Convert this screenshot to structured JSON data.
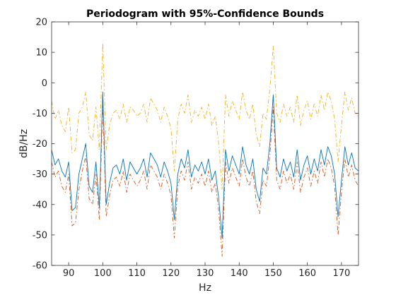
{
  "chart_data": {
    "type": "line",
    "title": "Periodogram with 95%-Confidence Bounds",
    "xlabel": "Hz",
    "ylabel": "dB/Hz",
    "xlim": [
      85,
      175
    ],
    "ylim": [
      -60,
      20
    ],
    "xticks": [
      90,
      100,
      110,
      120,
      130,
      140,
      150,
      160,
      170
    ],
    "yticks": [
      -60,
      -50,
      -40,
      -30,
      -20,
      -10,
      0,
      10,
      20
    ],
    "grid": false,
    "x": [
      85,
      86,
      87,
      88,
      89,
      90,
      91,
      92,
      93,
      94,
      95,
      96,
      97,
      98,
      99,
      100,
      101,
      102,
      103,
      104,
      105,
      106,
      107,
      108,
      109,
      110,
      111,
      112,
      113,
      114,
      115,
      116,
      117,
      118,
      119,
      120,
      121,
      122,
      123,
      124,
      125,
      126,
      127,
      128,
      129,
      130,
      131,
      132,
      133,
      134,
      135,
      136,
      137,
      138,
      139,
      140,
      141,
      142,
      143,
      144,
      145,
      146,
      147,
      148,
      149,
      150,
      151,
      152,
      153,
      154,
      155,
      156,
      157,
      158,
      159,
      160,
      161,
      162,
      163,
      164,
      165,
      166,
      167,
      168,
      169,
      170,
      171,
      172,
      173,
      174,
      175
    ],
    "series": [
      {
        "color": "#0072BD",
        "dash": "",
        "values": [
          -22,
          -27,
          -25,
          -29,
          -31,
          -26,
          -42,
          -41,
          -30,
          -25,
          -20,
          -34,
          -36,
          -26,
          -41,
          -3,
          -40,
          -33,
          -28,
          -27,
          -30,
          -25,
          -32,
          -26,
          -28,
          -30,
          -28,
          -25,
          -31,
          -23,
          -25,
          -27,
          -31,
          -26,
          -29,
          -33,
          -45,
          -30,
          -25,
          -28,
          -22,
          -31,
          -27,
          -29,
          -26,
          -30,
          -25,
          -32,
          -29,
          -38,
          -51,
          -22,
          -29,
          -24,
          -27,
          -30,
          -21,
          -27,
          -30,
          -25,
          -35,
          -39,
          -28,
          -30,
          -20,
          -4,
          -28,
          -31,
          -25,
          -29,
          -26,
          -31,
          -22,
          -32,
          -27,
          -24,
          -30,
          -25,
          -29,
          -22,
          -27,
          -21,
          -24,
          -30,
          -44,
          -32,
          -21,
          -27,
          -23,
          -28,
          -29
        ]
      },
      {
        "color": "#EDB120",
        "dash": "6,3,1.5,3",
        "values": [
          -6,
          -12,
          -9,
          -14,
          -16,
          -8,
          -23,
          -22,
          -10,
          -8,
          -3,
          -17,
          -19,
          -8,
          -22,
          13,
          -22,
          -14,
          -10,
          -9,
          -12,
          -7,
          -13,
          -8,
          -9,
          -11,
          -10,
          -7,
          -13,
          -5,
          -7,
          -9,
          -13,
          -8,
          -11,
          -15,
          -29,
          -12,
          -7,
          -10,
          -4,
          -13,
          -9,
          -11,
          -8,
          -12,
          -7,
          -14,
          -11,
          -20,
          -35,
          -4,
          -11,
          -6,
          -9,
          -12,
          -3,
          -9,
          -12,
          -7,
          -17,
          -21,
          -10,
          -12,
          -2,
          12,
          -10,
          -13,
          -7,
          -11,
          -8,
          -13,
          -4,
          -14,
          -9,
          -6,
          -12,
          -7,
          -11,
          -4,
          -9,
          -3,
          -6,
          -12,
          -26,
          -14,
          -3,
          -9,
          -5,
          -10,
          -11
        ]
      },
      {
        "color": "#D95319",
        "dash": "6,3,1.5,3",
        "values": [
          -26,
          -31,
          -29,
          -34,
          -36,
          -30,
          -47,
          -46,
          -35,
          -29,
          -24,
          -38,
          -40,
          -30,
          -45,
          -7,
          -44,
          -37,
          -32,
          -31,
          -34,
          -29,
          -36,
          -30,
          -32,
          -34,
          -32,
          -29,
          -35,
          -27,
          -29,
          -31,
          -35,
          -30,
          -33,
          -37,
          -51,
          -34,
          -29,
          -32,
          -26,
          -35,
          -31,
          -33,
          -30,
          -34,
          -29,
          -36,
          -33,
          -42,
          -57,
          -26,
          -33,
          -28,
          -31,
          -34,
          -25,
          -31,
          -34,
          -29,
          -39,
          -43,
          -32,
          -34,
          -24,
          -8,
          -32,
          -35,
          -29,
          -33,
          -30,
          -35,
          -26,
          -36,
          -31,
          -28,
          -34,
          -29,
          -33,
          -26,
          -31,
          -25,
          -28,
          -34,
          -50,
          -36,
          -25,
          -31,
          -27,
          -32,
          -34
        ]
      }
    ]
  }
}
